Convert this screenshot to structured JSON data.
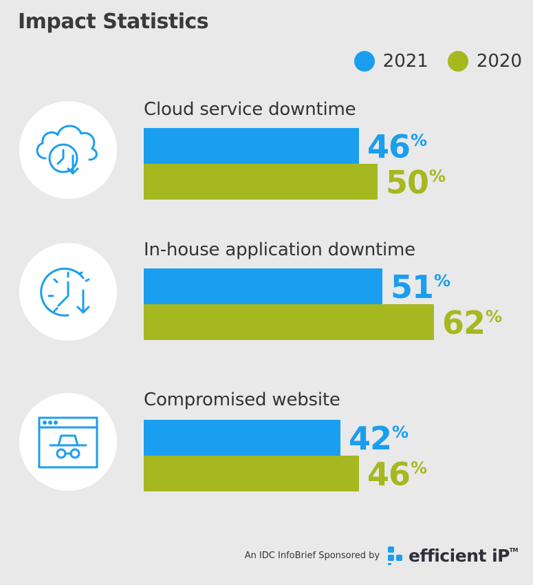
{
  "title": "Impact Statistics",
  "colors": {
    "2021": "#1a9ef0",
    "2020": "#a6b81f"
  },
  "legend": [
    {
      "label": "2021",
      "color": "#1a9ef0"
    },
    {
      "label": "2020",
      "color": "#a6b81f"
    }
  ],
  "chart_data": {
    "type": "bar",
    "orientation": "horizontal",
    "title": "Impact Statistics",
    "categories": [
      "Cloud service downtime",
      "In-house application downtime",
      "Compromised website"
    ],
    "series": [
      {
        "name": "2021",
        "values": [
          46,
          51,
          42
        ]
      },
      {
        "name": "2020",
        "values": [
          50,
          62,
          46
        ]
      }
    ],
    "unit": "%",
    "xlim": [
      0,
      100
    ],
    "grid": false,
    "legend_position": "top-right"
  },
  "icons": [
    "cloud-clock-icon",
    "clock-download-icon",
    "incognito-browser-icon"
  ],
  "footer": {
    "text": "An IDC InfoBrief Sponsored by",
    "brand": "efficient iP",
    "tm": "TM"
  }
}
